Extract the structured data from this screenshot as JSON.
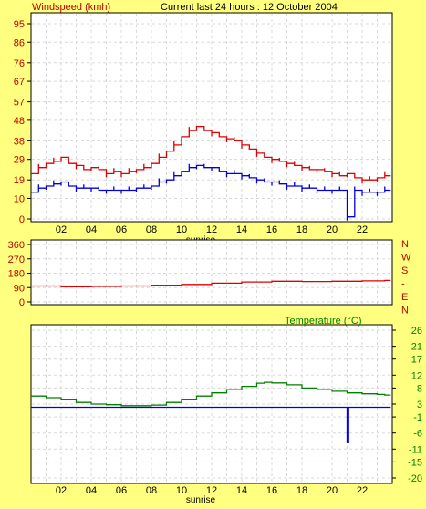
{
  "header": {
    "left_title": "Windspeed (kmh)",
    "center_title": "Current last 24 hours : 12 October 2004"
  },
  "colors": {
    "background": "#ffff80",
    "plot_bg": "#ffffff",
    "grid": "#d8d8d8",
    "red": "#e00000",
    "blue": "#0000e0",
    "green": "#008000",
    "label_red": "#c00000"
  },
  "chart_data": [
    {
      "id": "wind",
      "type": "line",
      "title": "Windspeed (kmh)",
      "xlabel": "sunrise",
      "x_ticks": [
        "02",
        "04",
        "06",
        "08",
        "10",
        "12",
        "14",
        "16",
        "18",
        "20",
        "22"
      ],
      "y_ticks": [
        0,
        10,
        19,
        29,
        38,
        48,
        57,
        67,
        76,
        86,
        95
      ],
      "ylim": [
        0,
        95
      ],
      "xlim": [
        0,
        24
      ],
      "grid": true,
      "series": [
        {
          "color": "#e00000",
          "x": [
            0,
            0.5,
            1,
            1.5,
            2,
            2.5,
            3,
            3.5,
            4,
            4.5,
            5,
            5.5,
            6,
            6.5,
            7,
            7.5,
            8,
            8.5,
            9,
            9.5,
            10,
            10.5,
            11,
            11.5,
            12,
            12.5,
            13,
            13.5,
            14,
            14.5,
            15,
            15.5,
            16,
            16.5,
            17,
            17.5,
            18,
            18.5,
            19,
            19.5,
            20,
            20.5,
            21,
            21.5,
            22,
            22.5,
            23,
            23.5
          ],
          "values": [
            22,
            25,
            27,
            28,
            30,
            27,
            26,
            24,
            25,
            24,
            22,
            23,
            22,
            23,
            24,
            25,
            27,
            30,
            33,
            36,
            40,
            43,
            45,
            43,
            42,
            40,
            39,
            38,
            36,
            34,
            32,
            30,
            29,
            28,
            27,
            26,
            25,
            24,
            24,
            23,
            22,
            21,
            22,
            20,
            19,
            19,
            20,
            21
          ]
        },
        {
          "color": "#0000e0",
          "x": [
            0,
            0.5,
            1,
            1.5,
            2,
            2.5,
            3,
            3.5,
            4,
            4.5,
            5,
            5.5,
            6,
            6.5,
            7,
            7.5,
            8,
            8.5,
            9,
            9.5,
            10,
            10.5,
            11,
            11.5,
            12,
            12.5,
            13,
            13.5,
            14,
            14.5,
            15,
            15.5,
            16,
            16.5,
            17,
            17.5,
            18,
            18.5,
            19,
            19.5,
            20,
            20.5,
            21,
            21.5,
            22,
            22.5,
            23,
            23.5
          ],
          "values": [
            13,
            15,
            16,
            17,
            18,
            16,
            15,
            15,
            15,
            14,
            14,
            14,
            14,
            14,
            15,
            15,
            16,
            18,
            19,
            21,
            23,
            25,
            26,
            25,
            25,
            23,
            22,
            22,
            21,
            20,
            19,
            18,
            18,
            17,
            16,
            16,
            15,
            15,
            14,
            14,
            14,
            14,
            1,
            14,
            13,
            13,
            13,
            14
          ]
        }
      ]
    },
    {
      "id": "direction",
      "type": "line",
      "title": "",
      "y_ticks": [
        0,
        90,
        180,
        270,
        360
      ],
      "ylim": [
        0,
        360
      ],
      "xlim": [
        0,
        24
      ],
      "right_letters": [
        "N",
        "W",
        "S",
        "-",
        "E",
        "N"
      ],
      "grid": true,
      "series": [
        {
          "color": "#e00000",
          "x": [
            0,
            2,
            4,
            6,
            8,
            10,
            12,
            14,
            16,
            18,
            20,
            22,
            23.5
          ],
          "values": [
            100,
            95,
            97,
            100,
            105,
            110,
            118,
            125,
            130,
            128,
            130,
            132,
            135
          ]
        }
      ]
    },
    {
      "id": "temperature",
      "type": "line",
      "title": "Temperature (°C)",
      "xlabel": "sunrise",
      "x_ticks": [
        "02",
        "04",
        "06",
        "08",
        "10",
        "12",
        "14",
        "16",
        "18",
        "20",
        "22"
      ],
      "y_ticks": [
        26,
        21,
        17,
        12,
        8,
        3,
        -1,
        -6,
        -11,
        -15,
        -20
      ],
      "ylim": [
        -20,
        26
      ],
      "xlim": [
        0,
        24
      ],
      "grid": true,
      "series": [
        {
          "color": "#008000",
          "x": [
            0,
            1,
            2,
            3,
            4,
            5,
            6,
            7,
            8,
            9,
            10,
            11,
            12,
            13,
            14,
            15,
            15.5,
            16,
            17,
            18,
            19,
            20,
            21,
            22,
            23,
            23.5
          ],
          "values": [
            5.5,
            5,
            4.5,
            3.5,
            3,
            2.8,
            2.5,
            2.5,
            2.7,
            3.5,
            4.5,
            5.5,
            6.5,
            7.5,
            8.5,
            9.5,
            9.8,
            9.6,
            9,
            8,
            7.5,
            7,
            6.5,
            6.2,
            6,
            5.8
          ]
        },
        {
          "color": "#0000e0",
          "x": [
            0,
            20.8,
            20.9,
            21.0,
            21.1,
            23.5
          ],
          "values": [
            2,
            2,
            2,
            -9,
            2,
            2
          ]
        }
      ]
    }
  ]
}
